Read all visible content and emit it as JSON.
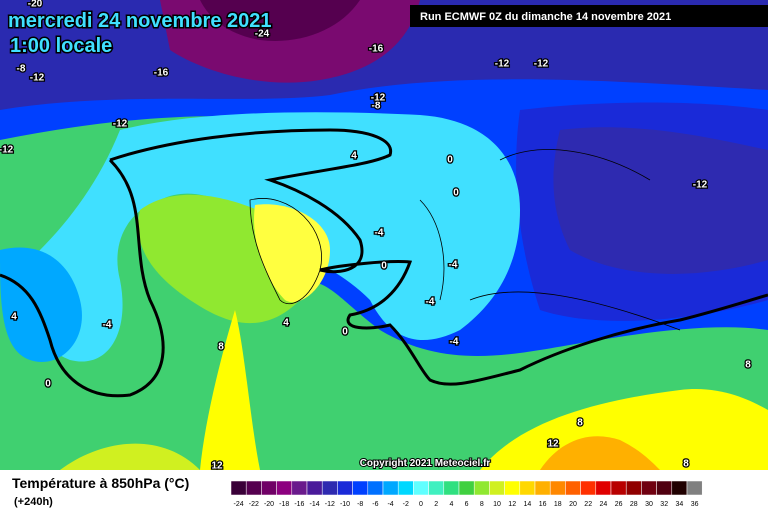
{
  "header": {
    "title": "mercredi 24 novembre 2021",
    "subtitle": "1:00 locale",
    "run": "Run ECMWF 0Z du dimanche 14 novembre 2021"
  },
  "copyright": "Copyright 2021 Meteociel.fr",
  "legend": {
    "title": "Température à 850hPa (°C)",
    "lead": "(+240h)",
    "ticks": [
      -24,
      -22,
      -20,
      -18,
      -16,
      -14,
      -12,
      -10,
      -8,
      -6,
      -4,
      -2,
      0,
      2,
      4,
      6,
      8,
      10,
      12,
      14,
      16,
      18,
      20,
      22,
      24,
      26,
      28,
      30,
      32,
      34,
      36
    ],
    "colors": [
      "#3a0038",
      "#55004f",
      "#700066",
      "#8c007f",
      "#6a1a8c",
      "#4a1a9a",
      "#2e2ab0",
      "#1a2ad8",
      "#0040ff",
      "#0070ff",
      "#00a8ff",
      "#00d8ff",
      "#60ffff",
      "#40f0c0",
      "#30e080",
      "#40d040",
      "#90e830",
      "#d0f020",
      "#ffff00",
      "#ffd800",
      "#ffb000",
      "#ff8800",
      "#ff6000",
      "#ff3000",
      "#e00000",
      "#b80000",
      "#900000",
      "#700010",
      "#500010",
      "#200000",
      "#808080"
    ]
  },
  "contour_labels": [
    -20,
    -24,
    -16,
    -12,
    -12,
    -8,
    -8,
    -12,
    -16,
    -12,
    -12,
    -12,
    4,
    0,
    0,
    -4,
    0,
    -4,
    -4,
    -4,
    4,
    0,
    -4,
    4,
    0,
    8,
    12,
    12,
    8,
    8,
    8,
    -12
  ]
}
